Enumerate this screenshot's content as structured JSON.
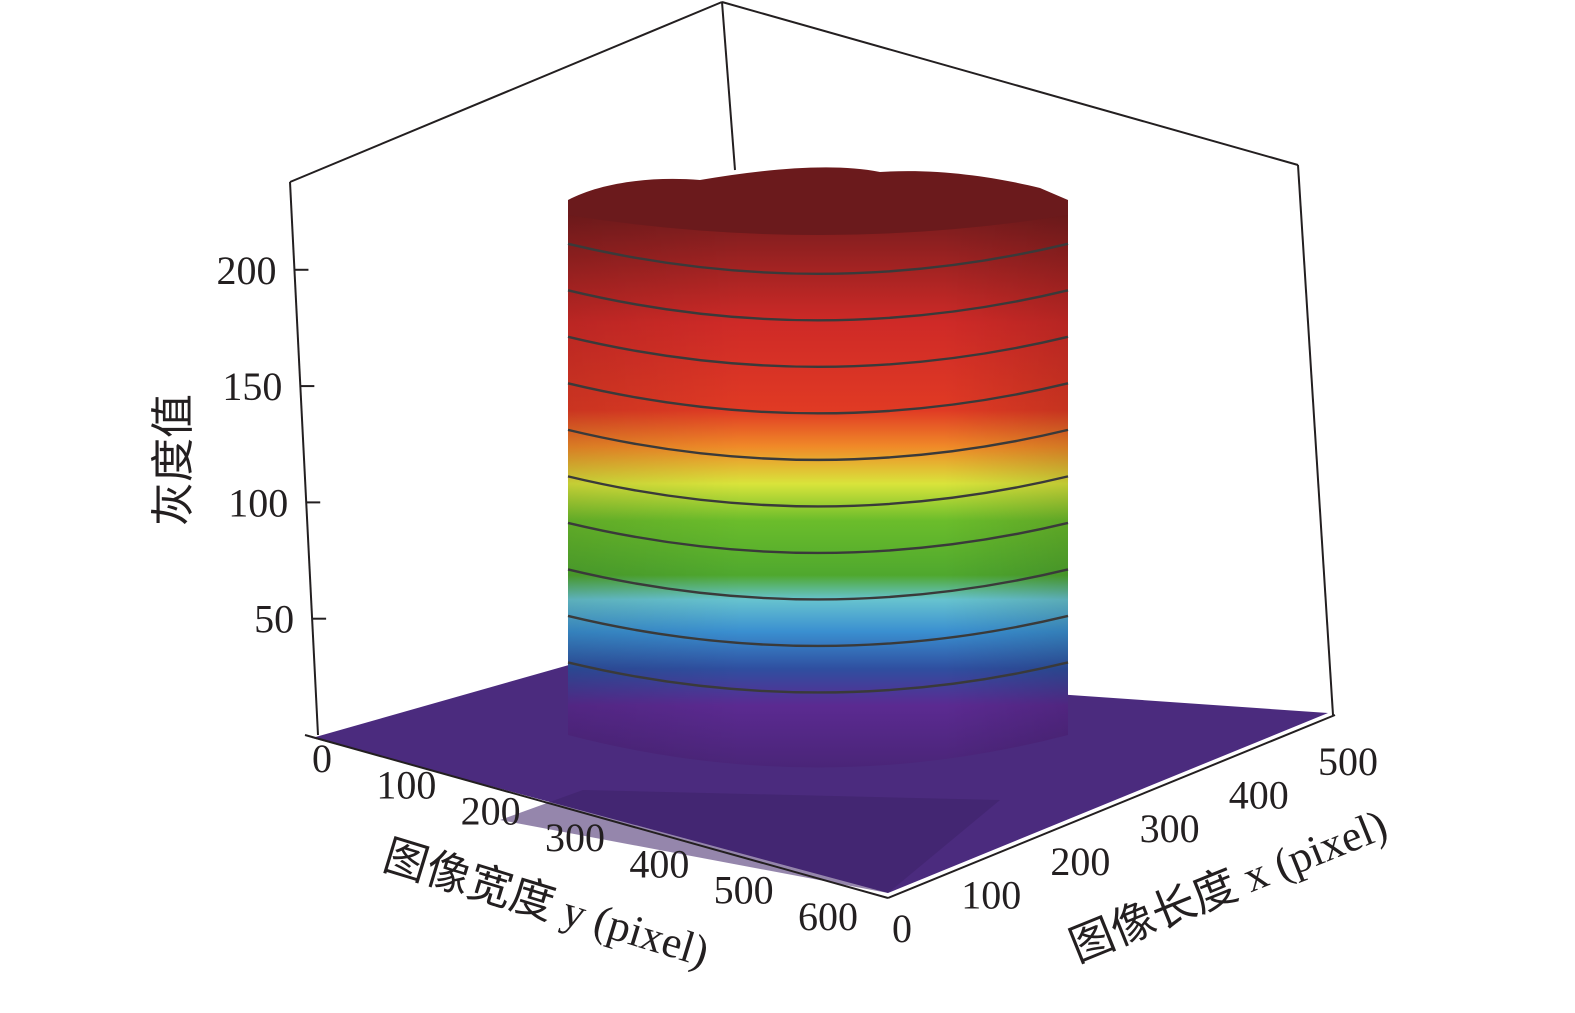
{
  "chart_data": {
    "type": "surface3d",
    "title": "",
    "zlabel": "灰度值",
    "ylabel": "图像宽度 y (pixel)",
    "xlabel": "图像长度 x (pixel)",
    "z_ticks": [
      "50",
      "100",
      "150",
      "200"
    ],
    "y_ticks": [
      "0",
      "100",
      "200",
      "300",
      "400",
      "500",
      "600"
    ],
    "x_ticks": [
      "0",
      "100",
      "200",
      "300",
      "400",
      "500"
    ],
    "xlim": [
      0,
      500
    ],
    "ylim": [
      0,
      600
    ],
    "zlim": [
      0,
      230
    ],
    "background_level": 12,
    "plateau_level": 218,
    "contour_levels": [
      20,
      40,
      60,
      80,
      100,
      120,
      140,
      160,
      180,
      200
    ],
    "colormap": [
      {
        "value": 0,
        "color": "#4a2578"
      },
      {
        "value": 25,
        "color": "#5b2a91"
      },
      {
        "value": 40,
        "color": "#2f4fa0"
      },
      {
        "value": 55,
        "color": "#3a8fd0"
      },
      {
        "value": 68,
        "color": "#67c3cf"
      },
      {
        "value": 78,
        "color": "#4fa82e"
      },
      {
        "value": 100,
        "color": "#6bbd2b"
      },
      {
        "value": 115,
        "color": "#d9e43b"
      },
      {
        "value": 130,
        "color": "#f08a28"
      },
      {
        "value": 145,
        "color": "#e03a24"
      },
      {
        "value": 180,
        "color": "#cf2a27"
      },
      {
        "value": 230,
        "color": "#6b1a1c"
      }
    ],
    "grid": false,
    "legend": "none"
  }
}
